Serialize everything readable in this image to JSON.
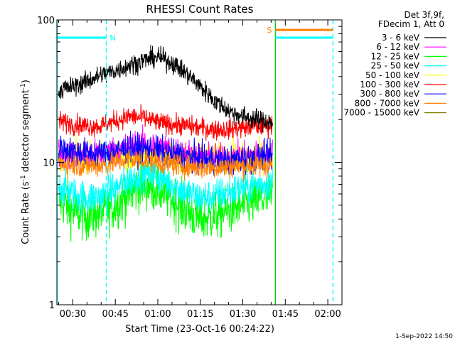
{
  "chart_data": {
    "type": "line",
    "title": "RHESSI Count Rates",
    "xlabel": "Start Time (23-Oct-16 00:24:22)",
    "ylabel_main": "Count Rate (s",
    "ylabel_exp1": "-1",
    "ylabel_mid": " detector segment",
    "ylabel_exp2": "-1",
    "ylabel_end": ")",
    "xlim_minutes": [
      24.37,
      125.0
    ],
    "ylim": [
      1,
      100
    ],
    "y_scale": "log",
    "x_ticks": [
      "00:30",
      "00:45",
      "01:00",
      "01:15",
      "01:30",
      "01:45",
      "02:00"
    ],
    "x_tick_minutes": [
      30,
      45,
      60,
      75,
      90,
      105,
      120
    ],
    "y_ticks": [
      "1",
      "10",
      "100"
    ],
    "y_tick_values": [
      1,
      10,
      100
    ],
    "data_end_minute": 100.5,
    "legend_header": [
      "Det 3f,9f,",
      "FDecim 1, Att 0"
    ],
    "series": [
      {
        "name": "3 - 6 keV",
        "color": "#000000",
        "x": [
          25,
          30,
          35,
          40,
          45,
          50,
          55,
          60,
          65,
          70,
          75,
          80,
          85,
          90,
          95,
          100.5
        ],
        "values": [
          32,
          34,
          37,
          41,
          44,
          48,
          52,
          55,
          50,
          42,
          34,
          27,
          23,
          21,
          20,
          19
        ]
      },
      {
        "name": "6 - 12 keV",
        "color": "#ff00ff",
        "x": [
          25,
          35,
          45,
          50,
          55,
          60,
          65,
          70,
          75,
          80,
          85,
          90,
          95,
          100.5
        ],
        "values": [
          11.5,
          11.2,
          12,
          13,
          13.5,
          13,
          12.2,
          11.5,
          11,
          10.8,
          10.8,
          11,
          11.2,
          11.5
        ]
      },
      {
        "name": "12 - 25 keV",
        "color": "#00ff00",
        "x": [
          25,
          30,
          35,
          40,
          45,
          50,
          55,
          60,
          65,
          70,
          75,
          80,
          85,
          90,
          95,
          100.5
        ],
        "values": [
          5.5,
          4.5,
          4.2,
          4.4,
          5,
          6,
          7,
          6.5,
          5.5,
          4.6,
          4,
          4.2,
          4.6,
          5,
          5.4,
          5.8
        ]
      },
      {
        "name": "25 - 50 keV",
        "color": "#00ffff",
        "x": [
          25,
          30,
          35,
          40,
          45,
          50,
          55,
          60,
          65,
          70,
          75,
          80,
          85,
          90,
          95,
          100.5
        ],
        "values": [
          6.8,
          6,
          5.6,
          5.8,
          6.5,
          7.5,
          8.5,
          8,
          7,
          6.2,
          5.6,
          5.8,
          6.2,
          6.6,
          7,
          7.2
        ]
      },
      {
        "name": "50 - 100 keV",
        "color": "#ffff00",
        "x": [
          25,
          40,
          50,
          60,
          70,
          80,
          90,
          100.5
        ],
        "values": [
          11,
          11,
          11.5,
          11.5,
          11,
          10.8,
          11,
          11.2
        ]
      },
      {
        "name": "100 - 300 keV",
        "color": "#ff0000",
        "x": [
          25,
          30,
          35,
          40,
          45,
          50,
          55,
          60,
          65,
          70,
          75,
          80,
          85,
          90,
          95,
          100.5
        ],
        "values": [
          19.5,
          18.5,
          18,
          18,
          19.5,
          21,
          20.5,
          19,
          18.5,
          18,
          17.5,
          17,
          17,
          17.5,
          18,
          18
        ]
      },
      {
        "name": "300 - 800 keV",
        "color": "#0000ff",
        "x": [
          25,
          30,
          35,
          40,
          45,
          50,
          55,
          60,
          65,
          70,
          75,
          80,
          85,
          90,
          95,
          100.5
        ],
        "values": [
          12.5,
          12,
          11.5,
          11.5,
          12,
          12.5,
          12.5,
          12,
          11.5,
          11,
          10.5,
          10.3,
          10.2,
          10.5,
          10.8,
          11
        ]
      },
      {
        "name": "800 - 7000 keV",
        "color": "#ff8000",
        "x": [
          25,
          30,
          35,
          40,
          45,
          50,
          55,
          60,
          65,
          70,
          75,
          80,
          85,
          90,
          95,
          100.5
        ],
        "values": [
          10,
          9.6,
          9.4,
          9.5,
          10,
          10.5,
          10.4,
          10,
          9.7,
          9.4,
          9.2,
          9.2,
          9.3,
          9.4,
          9.5,
          9.6
        ]
      },
      {
        "name": "7000 - 15000 keV",
        "color": "#808000",
        "x": [],
        "values": []
      }
    ],
    "markers": [
      {
        "label": "N",
        "color": "#00ffff",
        "x_start": 24.5,
        "x_end": 41.8,
        "y": 75
      },
      {
        "label": "S",
        "color": "#ff8000",
        "x_start": 101.5,
        "x_end": 121.8,
        "y": 85
      },
      {
        "label": "",
        "color": "#00ffff",
        "x_start": 101.5,
        "x_end": 121.8,
        "y": 75
      }
    ],
    "vertical_lines": [
      {
        "x": 24.5,
        "color": "#00ffff",
        "style": "solid"
      },
      {
        "x": 41.8,
        "color": "#00ffff",
        "style": "dashed"
      },
      {
        "x": 101.5,
        "color": "#00cc00",
        "style": "solid"
      },
      {
        "x": 121.8,
        "color": "#00ffff",
        "style": "dashed"
      }
    ],
    "footer_timestamp": "1-Sep-2022 14:50"
  }
}
